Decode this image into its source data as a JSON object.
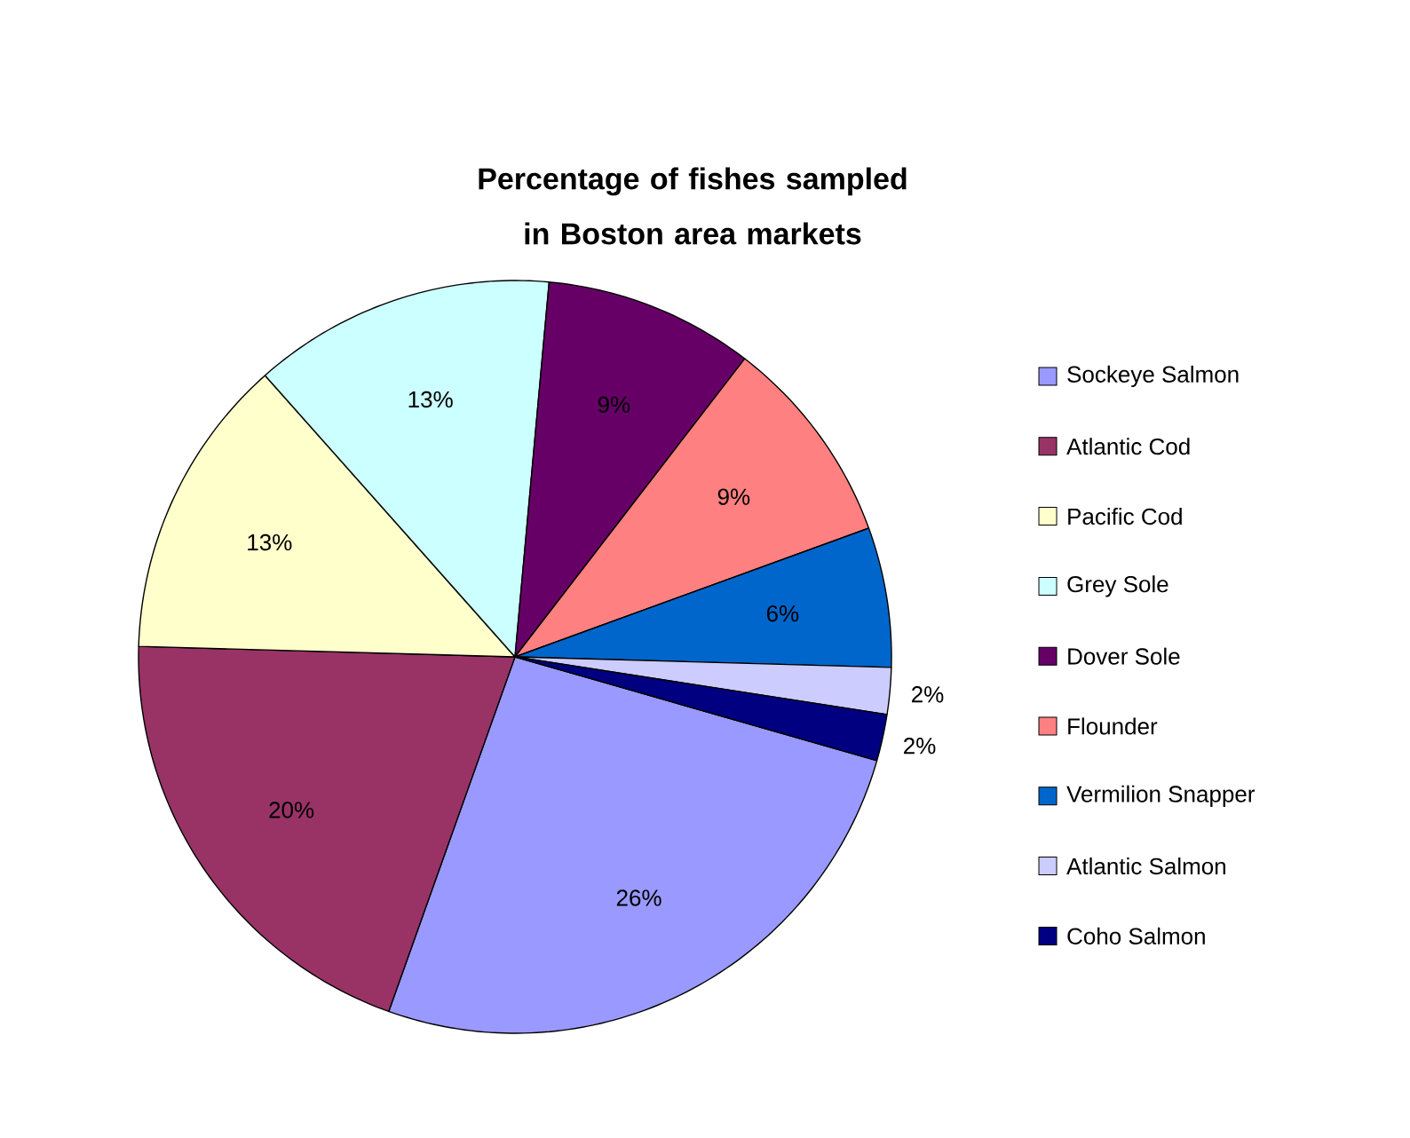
{
  "chart_data": {
    "type": "pie",
    "title": "Percentage of fishes sampled in Boston area markets",
    "categories": [
      "Sockeye Salmon",
      "Atlantic Cod",
      "Pacific Cod",
      "Grey Sole",
      "Dover Sole",
      "Flounder",
      "Vermilion Snapper",
      "Atlantic Salmon",
      "Coho Salmon"
    ],
    "values": [
      26,
      20,
      13,
      13,
      9,
      9,
      6,
      2,
      2
    ],
    "value_labels": [
      "26%",
      "20%",
      "13%",
      "13%",
      "9%",
      "9%",
      "6%",
      "2%",
      "2%"
    ],
    "colors": [
      "#9999ff",
      "#993366",
      "#ffffcc",
      "#ccffff",
      "#660066",
      "#ff8080",
      "#0066cc",
      "#ccccff",
      "#000080"
    ],
    "legend": "right"
  }
}
